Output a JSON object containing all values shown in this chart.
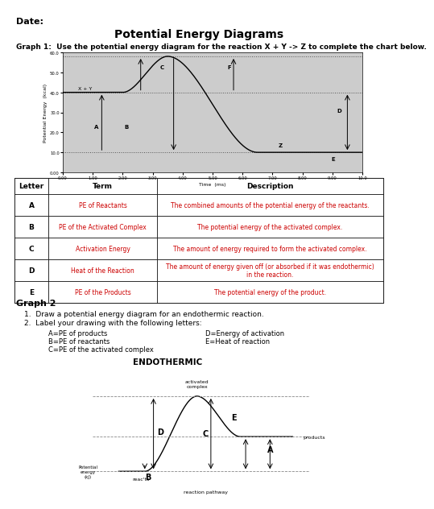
{
  "title": "Potential Energy Diagrams",
  "date_label": "Date:",
  "graph1_label": "Graph 1:  Use the potential energy diagram for the reaction X + Y -> Z to complete the chart below.",
  "graph2_label": "Graph 2",
  "graph2_instructions": [
    "Draw a potential energy diagram for an endothermic reaction.",
    "Label your drawing with the following letters:"
  ],
  "graph2_letters_left": [
    "A=PE of products",
    "B=PE of reactants",
    "C=PE of the activated complex"
  ],
  "graph2_letters_right": [
    "D=Energy of activation",
    "E=Heat of reaction"
  ],
  "endothermic_label": "ENDOTHERMIC",
  "table_headers": [
    "Letter",
    "Term",
    "Description"
  ],
  "table_rows": [
    [
      "A",
      "PE of Reactants",
      "The combined amounts of the potential energy of the reactants."
    ],
    [
      "B",
      "PE of the Activated Complex",
      "The potential energy of the activated complex."
    ],
    [
      "C",
      "Activation Energy",
      "The amount of energy required to form the activated complex."
    ],
    [
      "D",
      "Heat of the Reaction",
      "The amount of energy given off (or absorbed if it was endothermic)\nin the reaction."
    ],
    [
      "E",
      "PE of the Products",
      "The potential energy of the product."
    ]
  ],
  "red_color": "#cc0000"
}
